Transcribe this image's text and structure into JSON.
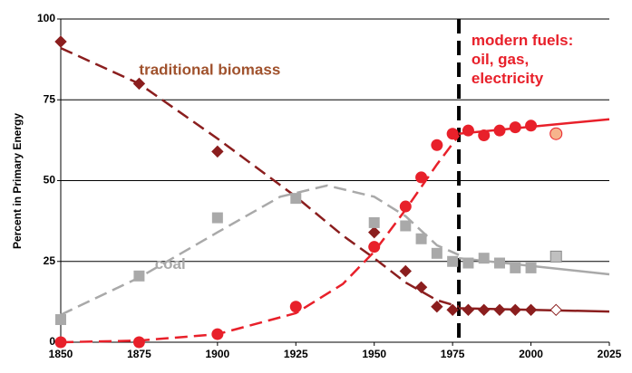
{
  "chart_data": {
    "type": "scatter",
    "ylabel": "Percent in Primary Energy",
    "xlim": [
      1850,
      2025
    ],
    "xticks": [
      1850,
      1875,
      1900,
      1925,
      1950,
      1975,
      2000,
      2025
    ],
    "ylim": [
      0,
      100
    ],
    "yticks": [
      0,
      25,
      50,
      75,
      100
    ],
    "grid": true,
    "divider_x": 1977,
    "series": [
      {
        "name": "traditional biomass",
        "marker": "diamond",
        "color": "#8b1e1e",
        "text_color": "#a0522d",
        "label_at": [
          1875,
          84
        ],
        "x": [
          1850,
          1875,
          1900,
          1950,
          1960,
          1965,
          1970,
          1975,
          1980,
          1985,
          1990,
          1995,
          2000,
          2008
        ],
        "values": [
          93,
          80,
          59,
          34,
          22,
          17,
          11,
          10,
          10,
          10,
          10,
          10,
          10,
          10
        ],
        "highlight_index": 13,
        "highlight_fill": "#ffffff",
        "fit_dashed": {
          "x": [
            1850,
            1875,
            1900,
            1925,
            1940,
            1950,
            1960,
            1970,
            1977
          ],
          "values": [
            91,
            80,
            63,
            45,
            33,
            26,
            18.5,
            13,
            11
          ]
        },
        "fit_solid": {
          "x": [
            1977,
            2025
          ],
          "values": [
            10.5,
            9.5
          ]
        }
      },
      {
        "name": "coal",
        "marker": "square",
        "color": "#a9a9a9",
        "text_color": "#a9a9a9",
        "label_at": [
          1880,
          24
        ],
        "x": [
          1850,
          1875,
          1900,
          1925,
          1950,
          1960,
          1965,
          1970,
          1975,
          1980,
          1985,
          1990,
          1995,
          2000,
          2008
        ],
        "values": [
          7,
          20.5,
          38.5,
          44.5,
          37,
          36,
          32,
          27.5,
          25,
          24.5,
          26,
          24.5,
          23,
          23,
          26.5
        ],
        "highlight_index": 14,
        "highlight_fill": "#c0c0c0",
        "fit_dashed": {
          "x": [
            1850,
            1875,
            1900,
            1920,
            1935,
            1950,
            1960,
            1970,
            1977
          ],
          "values": [
            8.5,
            20,
            34,
            45,
            48.5,
            45,
            39,
            30,
            27
          ]
        },
        "fit_solid": {
          "x": [
            1977,
            2025
          ],
          "values": [
            26,
            21
          ]
        }
      },
      {
        "name": "modern fuels:\noil, gas,\nelectricity",
        "marker": "circle",
        "color": "#e8202a",
        "text_color": "#e8202a",
        "label_at": [
          1981,
          93
        ],
        "x": [
          1850,
          1875,
          1900,
          1925,
          1950,
          1960,
          1965,
          1970,
          1975,
          1980,
          1985,
          1990,
          1995,
          2000,
          2008
        ],
        "values": [
          0,
          0,
          2.5,
          11,
          29.5,
          42,
          51,
          61,
          64.5,
          65.5,
          64,
          65.5,
          66.5,
          67,
          64.5
        ],
        "highlight_index": 14,
        "highlight_fill": "#f6b48c",
        "fit_dashed": {
          "x": [
            1850,
            1875,
            1900,
            1925,
            1940,
            1950,
            1960,
            1970,
            1977
          ],
          "values": [
            0,
            0.5,
            2.5,
            9,
            18,
            28,
            41,
            55,
            64
          ]
        },
        "fit_solid": {
          "x": [
            1977,
            2025
          ],
          "values": [
            64.5,
            69
          ]
        }
      }
    ]
  }
}
